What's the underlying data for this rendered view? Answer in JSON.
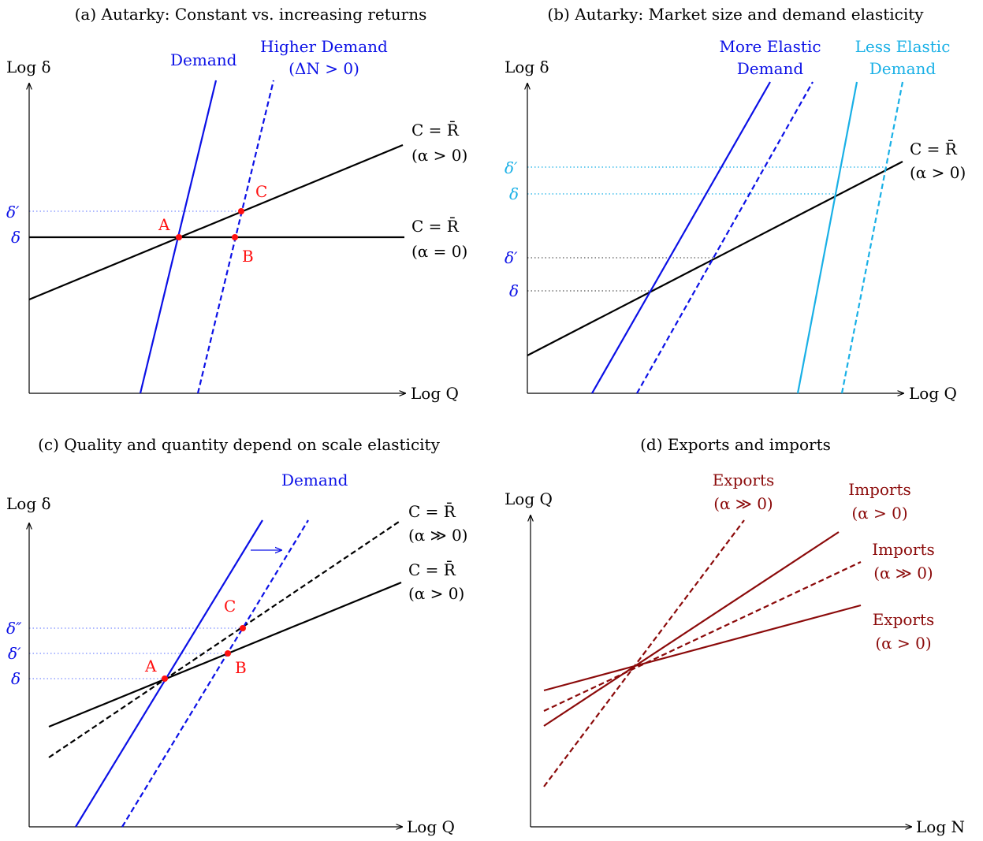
{
  "colors": {
    "black": "#000000",
    "blue": "#0b10e6",
    "cyan": "#19b0e6",
    "red": "#ff1010",
    "darkred": "#8b0a0a",
    "dotted_blue": "#7a8cff",
    "dotted_cyan": "#19b0e6",
    "dotted_black": "#555555"
  },
  "panels": {
    "a": {
      "title": "(a) Autarky: Constant vs. increasing returns",
      "y_axis": "Log δ",
      "x_axis": "Log Q",
      "demand_label": "Demand",
      "higher_demand_1": "Higher Demand",
      "higher_demand_2": "(ΔN > 0)",
      "cost_inc_1": "C = R̄",
      "cost_inc_2": "(α > 0)",
      "cost_const_1": "C = R̄",
      "cost_const_2": "(α = 0)",
      "tick_delta_prime": "δ′",
      "tick_delta": "δ",
      "point_a": "A",
      "point_b": "B",
      "point_c": "C"
    },
    "b": {
      "title": "(b) Autarky: Market size and demand elasticity",
      "y_axis": "Log δ",
      "x_axis": "Log Q",
      "more_elastic_1": "More Elastic",
      "more_elastic_2": "Demand",
      "less_elastic_1": "Less Elastic",
      "less_elastic_2": "Demand",
      "cost_1": "C = R̄",
      "cost_2": "(α > 0)",
      "tick_cyan_delta_prime": "δ′",
      "tick_cyan_delta": "δ",
      "tick_blue_delta_prime": "δ′",
      "tick_blue_delta": "δ"
    },
    "c": {
      "title": "(c) Quality and quantity depend on scale elasticity",
      "y_axis": "Log δ",
      "x_axis": "Log Q",
      "demand_label": "Demand",
      "cost_high_1": "C = R̄",
      "cost_high_2": "(α ≫ 0)",
      "cost_low_1": "C = R̄",
      "cost_low_2": "(α > 0)",
      "tick_delta_dprime": "δ″",
      "tick_delta_prime": "δ′",
      "tick_delta": "δ",
      "point_a": "A",
      "point_b": "B",
      "point_c": "C"
    },
    "d": {
      "title": "(d) Exports and imports",
      "y_axis": "Log Q",
      "x_axis": "Log N",
      "exports_high_1": "Exports",
      "exports_high_2": "(α ≫ 0)",
      "imports_low_1": "Imports",
      "imports_low_2": "(α > 0)",
      "imports_high_1": "Imports",
      "imports_high_2": "(α ≫ 0)",
      "exports_low_1": "Exports",
      "exports_low_2": "(α > 0)"
    }
  }
}
